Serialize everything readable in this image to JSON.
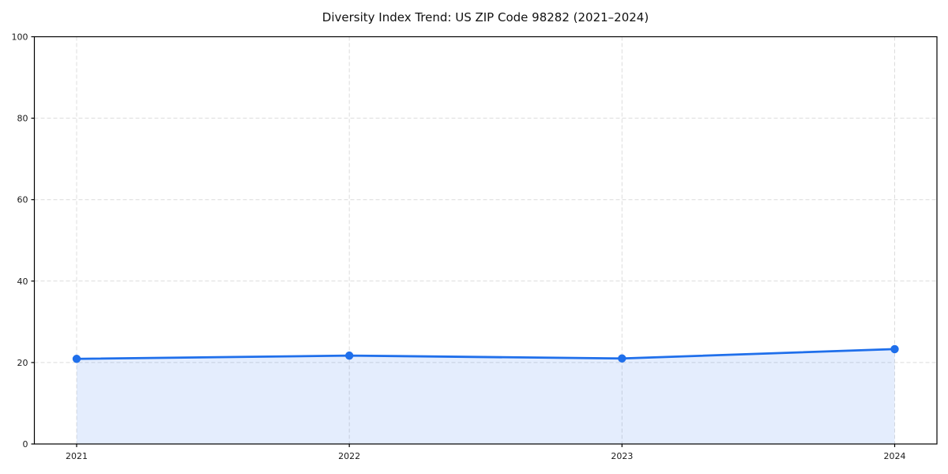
{
  "chart_data": {
    "type": "line",
    "title": "Diversity Index Trend: US ZIP Code 98282 (2021–2024)",
    "x": [
      "2021",
      "2022",
      "2023",
      "2024"
    ],
    "series": [
      {
        "name": "Diversity Index",
        "values": [
          20.9,
          21.7,
          21.0,
          23.3
        ]
      }
    ],
    "xlabel": "",
    "ylabel": "",
    "ylim": [
      0,
      100
    ],
    "yticks": [
      0,
      20,
      40,
      60,
      80,
      100
    ],
    "grid": "dashed, both axes",
    "legend": false,
    "area_fill": true,
    "marker": "circle",
    "colors": {
      "line": "#1f6feb",
      "fill": "rgba(31,111,235,0.12)",
      "grid": "#dcdcdc",
      "axis": "#000000",
      "tick_label": "#1a1a1a",
      "background": "#ffffff"
    }
  }
}
